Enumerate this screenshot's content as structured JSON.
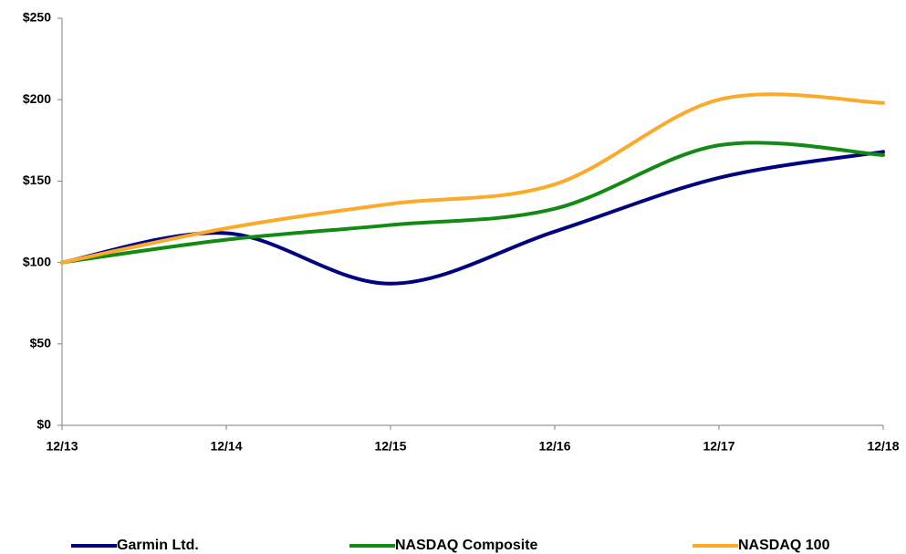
{
  "chart_data": {
    "type": "line",
    "categories": [
      "12/13",
      "12/14",
      "12/15",
      "12/16",
      "12/17",
      "12/18"
    ],
    "series": [
      {
        "name": "Garmin Ltd.",
        "color": "#000080",
        "values": [
          100,
          118,
          87,
          119,
          152,
          168
        ]
      },
      {
        "name": "NASDAQ Composite",
        "color": "#138a14",
        "values": [
          100,
          114,
          123,
          133,
          172,
          166
        ]
      },
      {
        "name": "NASDAQ 100",
        "color": "#fbaa2a",
        "values": [
          100,
          121,
          136,
          148,
          200,
          198
        ]
      }
    ],
    "ylim": [
      0,
      250
    ],
    "yticks": [
      {
        "value": 0,
        "label": "$0"
      },
      {
        "value": 50,
        "label": "$50"
      },
      {
        "value": 100,
        "label": "$100"
      },
      {
        "value": 150,
        "label": "$150"
      },
      {
        "value": 200,
        "label": "$200"
      },
      {
        "value": 250,
        "label": "$250"
      }
    ],
    "smooth": true,
    "legend": "bottom"
  }
}
